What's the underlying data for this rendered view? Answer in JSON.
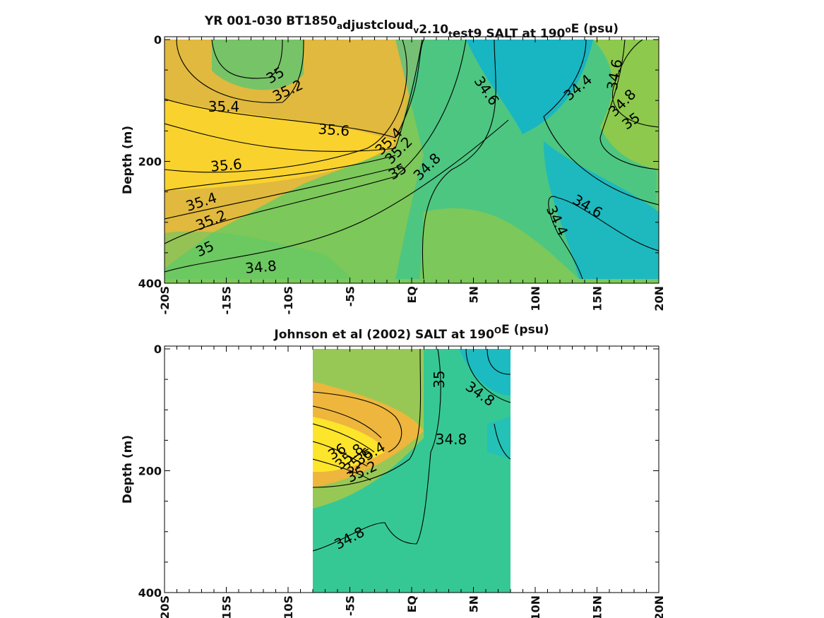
{
  "chart_data": [
    {
      "type": "heatmap",
      "title_parts": [
        {
          "t": "YR 001-030 BT1850"
        },
        {
          "t": "a",
          "sub": true
        },
        {
          "t": "djustcloud"
        },
        {
          "t": "v",
          "sub": true
        },
        {
          "t": "2.10"
        },
        {
          "t": "t",
          "sub": true
        },
        {
          "t": "est9 SALT at 190"
        },
        {
          "t": "o",
          "sup": true
        },
        {
          "t": "E (psu)"
        }
      ],
      "ylabel": "Depth (m)",
      "y_ticks": [
        "0",
        "200",
        "400"
      ],
      "x_ticks": [
        "-20S",
        "-15S",
        "-10S",
        "-5S",
        "EQ",
        "5N",
        "10N",
        "15N",
        "20N"
      ],
      "xlim": [
        -20,
        20
      ],
      "ylim": [
        400,
        0
      ],
      "contour_labels": [
        {
          "v": "35",
          "lat": -11,
          "d": 60,
          "rot": -30
        },
        {
          "v": "35.2",
          "lat": -10,
          "d": 85,
          "rot": -25
        },
        {
          "v": "35.4",
          "lat": -15.2,
          "d": 112,
          "rot": 0
        },
        {
          "v": "35.6",
          "lat": -6.3,
          "d": 150,
          "rot": 4
        },
        {
          "v": "35.6",
          "lat": -15,
          "d": 208,
          "rot": -5
        },
        {
          "v": "35.4",
          "lat": -17,
          "d": 268,
          "rot": -18
        },
        {
          "v": "35.2",
          "lat": -16.2,
          "d": 298,
          "rot": -22
        },
        {
          "v": "35",
          "lat": -16.7,
          "d": 345,
          "rot": -25
        },
        {
          "v": "34.8",
          "lat": -12.2,
          "d": 375,
          "rot": -5
        },
        {
          "v": "35.4",
          "lat": -1.8,
          "d": 168,
          "rot": -45
        },
        {
          "v": "35.2",
          "lat": -1,
          "d": 183,
          "rot": -45
        },
        {
          "v": "35",
          "lat": -1.1,
          "d": 218,
          "rot": -30
        },
        {
          "v": "34.8",
          "lat": 1.3,
          "d": 210,
          "rot": -45
        },
        {
          "v": "34.6",
          "lat": 6,
          "d": 85,
          "rot": 55
        },
        {
          "v": "34.4",
          "lat": 13.5,
          "d": 80,
          "rot": -40
        },
        {
          "v": "34.6",
          "lat": 16.5,
          "d": 58,
          "rot": -80
        },
        {
          "v": "34.8",
          "lat": 17.1,
          "d": 105,
          "rot": -45
        },
        {
          "v": "35",
          "lat": 17.8,
          "d": 135,
          "rot": -35
        },
        {
          "v": "34.6",
          "lat": 14.2,
          "d": 275,
          "rot": 30
        },
        {
          "v": "34.4",
          "lat": 11.7,
          "d": 298,
          "rot": 65
        }
      ]
    },
    {
      "type": "heatmap",
      "title_parts": [
        {
          "t": "Johnson et al (2002) SALT at 190"
        },
        {
          "t": "O",
          "sup": true
        },
        {
          "t": "E (psu)"
        }
      ],
      "ylabel": "Depth (m)",
      "y_ticks": [
        "0",
        "200",
        "400"
      ],
      "x_ticks": [
        "-20S",
        "-15S",
        "-10S",
        "-5S",
        "EQ",
        "5N",
        "10N",
        "15N",
        "20N"
      ],
      "xlim": [
        -20,
        20
      ],
      "ylim": [
        400,
        0
      ],
      "data_lat_range": [
        -8,
        8
      ],
      "contour_labels": [
        {
          "v": "35",
          "lat": 2.3,
          "d": 50,
          "rot": -90
        },
        {
          "v": "34.8",
          "lat": 5.5,
          "d": 75,
          "rot": 35
        },
        {
          "v": "34.8",
          "lat": 3.2,
          "d": 150,
          "rot": 0
        },
        {
          "v": "36",
          "lat": -6,
          "d": 170,
          "rot": -30
        },
        {
          "v": "35.8",
          "lat": -5,
          "d": 178,
          "rot": -40
        },
        {
          "v": "35.6",
          "lat": -4.3,
          "d": 185,
          "rot": -40
        },
        {
          "v": "35.4",
          "lat": -3.3,
          "d": 173,
          "rot": -30
        },
        {
          "v": "35.2",
          "lat": -4,
          "d": 203,
          "rot": -25
        },
        {
          "v": "34.8",
          "lat": -5,
          "d": 312,
          "rot": -28
        }
      ]
    }
  ]
}
